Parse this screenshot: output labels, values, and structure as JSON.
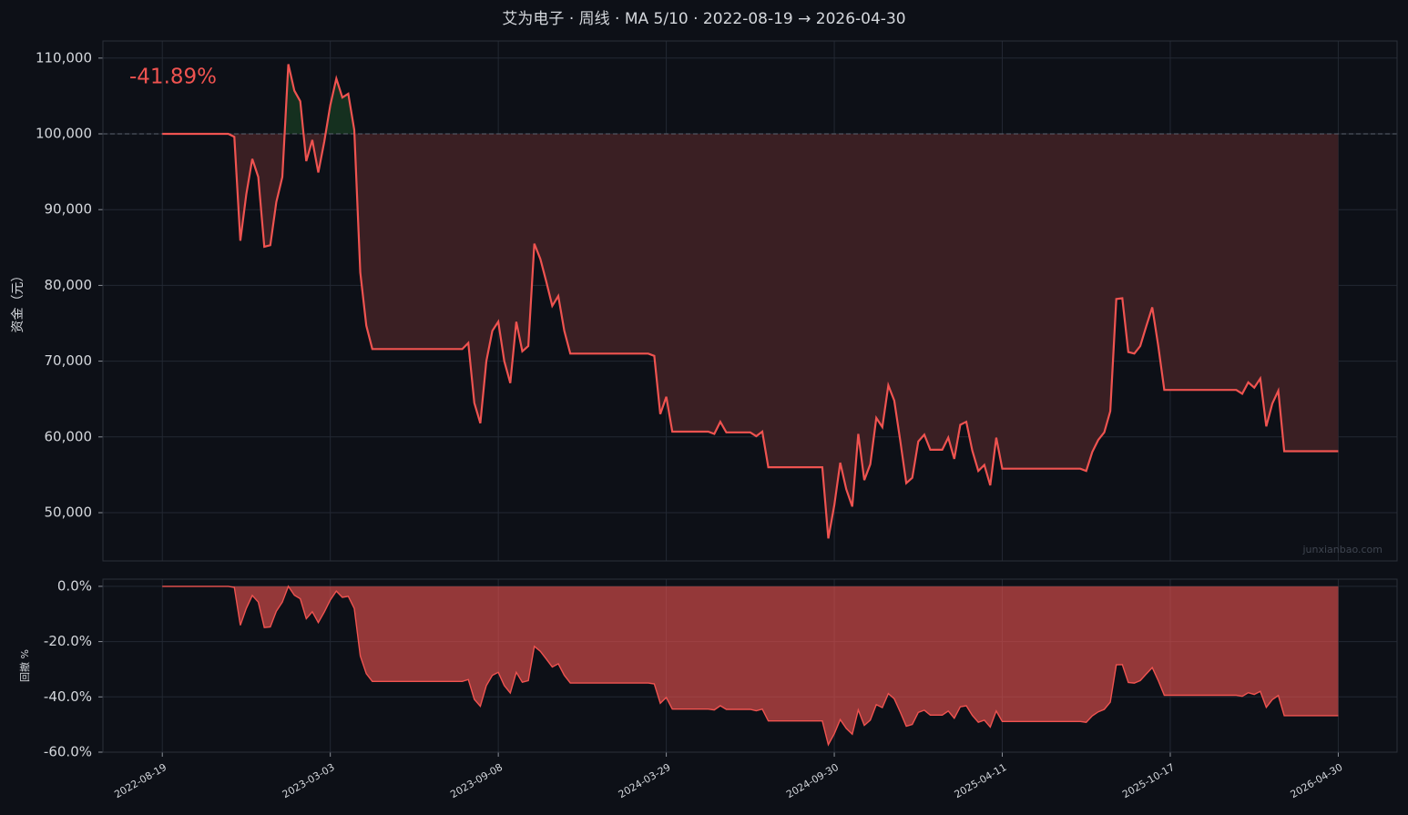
{
  "chart_data": [
    {
      "type": "line",
      "title": "艾为电子 · 周线 · MA 5/10 · 2022-08-19 → 2026-04-30",
      "ylabel": "资金（元）",
      "annotation": "-41.89%",
      "watermark": "junxianbao.com",
      "baseline": 100000,
      "color": "#ef5350",
      "grid": true,
      "x": [
        0,
        11,
        12,
        13,
        14,
        15,
        16,
        17,
        18,
        19,
        20,
        21,
        22,
        23,
        24,
        25,
        26,
        27,
        28,
        29,
        30,
        31,
        32,
        33,
        34,
        35,
        50,
        51,
        52,
        53,
        54,
        55,
        56,
        57,
        58,
        59,
        60,
        61,
        62,
        63,
        64,
        65,
        66,
        67,
        68,
        81,
        82,
        83,
        84,
        85,
        91,
        92,
        93,
        94,
        98,
        99,
        100,
        101,
        110,
        111,
        112,
        113,
        114,
        115,
        116,
        117,
        118,
        119,
        120,
        121,
        122,
        123,
        124,
        125,
        126,
        127,
        128,
        130,
        131,
        132,
        133,
        134,
        135,
        136,
        137,
        138,
        139,
        140,
        153,
        154,
        155,
        156,
        157,
        158,
        159,
        160,
        161,
        162,
        163,
        164,
        165,
        166,
        167,
        179,
        180,
        181,
        182,
        183,
        184,
        185,
        186,
        187,
        196
      ],
      "values": [
        100000,
        100000,
        99600,
        85900,
        92000,
        96700,
        94300,
        85100,
        85300,
        91000,
        94300,
        109200,
        105700,
        104300,
        96400,
        99200,
        94900,
        99000,
        103800,
        107300,
        104800,
        105300,
        100500,
        81700,
        74700,
        71600,
        71600,
        72400,
        64500,
        61800,
        70000,
        74000,
        75200,
        70000,
        67100,
        75200,
        71300,
        72000,
        85500,
        83500,
        80500,
        77300,
        78600,
        74000,
        71000,
        71000,
        70700,
        63000,
        65300,
        60700,
        60700,
        60400,
        62000,
        60600,
        60600,
        60100,
        60700,
        56000,
        56000,
        46600,
        51000,
        56600,
        53100,
        50800,
        60400,
        54300,
        56400,
        62500,
        61300,
        66800,
        64800,
        59500,
        53900,
        54600,
        59400,
        60300,
        58300,
        58300,
        59900,
        57100,
        61600,
        62000,
        58200,
        55500,
        56300,
        53600,
        59900,
        55800,
        55800,
        55500,
        58000,
        59600,
        60600,
        63400,
        78200,
        78300,
        71200,
        71000,
        72000,
        74600,
        77100,
        72000,
        66200,
        66200,
        65700,
        67200,
        66500,
        67700,
        61400,
        64400,
        66100,
        58110,
        58110
      ],
      "xlim": [
        -9.9,
        205.8
      ],
      "xticks": [
        0,
        28,
        56,
        84,
        112,
        140,
        168,
        196
      ],
      "ylim": [
        43630,
        112260
      ],
      "yticks": [
        {
          "value": 50000,
          "label": "50,000"
        },
        {
          "value": 60000,
          "label": "60,000"
        },
        {
          "value": 70000,
          "label": "70,000"
        },
        {
          "value": 80000,
          "label": "80,000"
        },
        {
          "value": 90000,
          "label": "90,000"
        },
        {
          "value": 100000,
          "label": "100,000"
        },
        {
          "value": 110000,
          "label": "110,000"
        }
      ]
    },
    {
      "type": "area",
      "ylabel": "回撤 %",
      "color": "#ef5350",
      "grid": true,
      "x": [
        0,
        11,
        12,
        13,
        14,
        15,
        16,
        17,
        18,
        19,
        20,
        21,
        22,
        23,
        24,
        25,
        26,
        27,
        28,
        29,
        30,
        31,
        32,
        33,
        34,
        35,
        50,
        51,
        52,
        53,
        54,
        55,
        56,
        57,
        58,
        59,
        60,
        61,
        62,
        63,
        64,
        65,
        66,
        67,
        68,
        81,
        82,
        83,
        84,
        85,
        91,
        92,
        93,
        94,
        98,
        99,
        100,
        101,
        110,
        111,
        112,
        113,
        114,
        115,
        116,
        117,
        118,
        119,
        120,
        121,
        122,
        123,
        124,
        125,
        126,
        127,
        128,
        130,
        131,
        132,
        133,
        134,
        135,
        136,
        137,
        138,
        139,
        140,
        153,
        154,
        155,
        156,
        157,
        158,
        159,
        160,
        161,
        162,
        163,
        164,
        165,
        166,
        167,
        179,
        180,
        181,
        182,
        183,
        184,
        185,
        186,
        187,
        196
      ],
      "values": [
        0,
        0,
        -0.4,
        -14.1,
        -8.0,
        -3.3,
        -5.7,
        -14.9,
        -14.7,
        -9.0,
        -5.7,
        0,
        -3.2,
        -4.5,
        -11.7,
        -9.2,
        -13.1,
        -9.3,
        -4.9,
        -1.7,
        -4.0,
        -3.6,
        -8.0,
        -25.2,
        -31.6,
        -34.4,
        -34.4,
        -33.7,
        -40.9,
        -43.4,
        -35.9,
        -32.2,
        -31.1,
        -35.9,
        -38.6,
        -31.1,
        -34.7,
        -34.1,
        -21.7,
        -23.5,
        -26.3,
        -29.2,
        -28.0,
        -32.2,
        -35.0,
        -35.0,
        -35.3,
        -42.3,
        -40.2,
        -44.4,
        -44.4,
        -44.7,
        -43.2,
        -44.5,
        -44.5,
        -45.0,
        -44.4,
        -48.7,
        -48.7,
        -57.3,
        -53.3,
        -48.2,
        -51.4,
        -53.5,
        -44.7,
        -50.3,
        -48.4,
        -42.8,
        -43.9,
        -38.8,
        -40.7,
        -45.5,
        -50.6,
        -50.0,
        -45.6,
        -44.8,
        -46.6,
        -46.6,
        -45.1,
        -47.7,
        -43.6,
        -43.2,
        -46.7,
        -49.2,
        -48.4,
        -50.9,
        -45.1,
        -48.9,
        -48.9,
        -49.2,
        -46.9,
        -45.4,
        -44.5,
        -41.9,
        -28.4,
        -28.3,
        -34.8,
        -35.0,
        -34.1,
        -31.7,
        -29.4,
        -34.1,
        -39.4,
        -39.4,
        -39.8,
        -38.5,
        -39.1,
        -38.0,
        -43.8,
        -41.0,
        -39.5,
        -46.8,
        -46.8
      ],
      "xlim": [
        -9.9,
        205.8
      ],
      "xticks": [
        {
          "value": 0,
          "label": "2022-08-19"
        },
        {
          "value": 28,
          "label": "2023-03-03"
        },
        {
          "value": 56,
          "label": "2023-09-08"
        },
        {
          "value": 84,
          "label": "2024-03-29"
        },
        {
          "value": 112,
          "label": "2024-09-30"
        },
        {
          "value": 140,
          "label": "2025-04-11"
        },
        {
          "value": 168,
          "label": "2025-10-17"
        },
        {
          "value": 196,
          "label": "2026-04-30"
        }
      ],
      "ylim": [
        -60,
        2.6
      ],
      "yticks": [
        {
          "value": -60,
          "label": "-60.0%"
        },
        {
          "value": -40,
          "label": "-40.0%"
        },
        {
          "value": -20,
          "label": "-20.0%"
        },
        {
          "value": 0,
          "label": "0.0%"
        }
      ]
    }
  ]
}
